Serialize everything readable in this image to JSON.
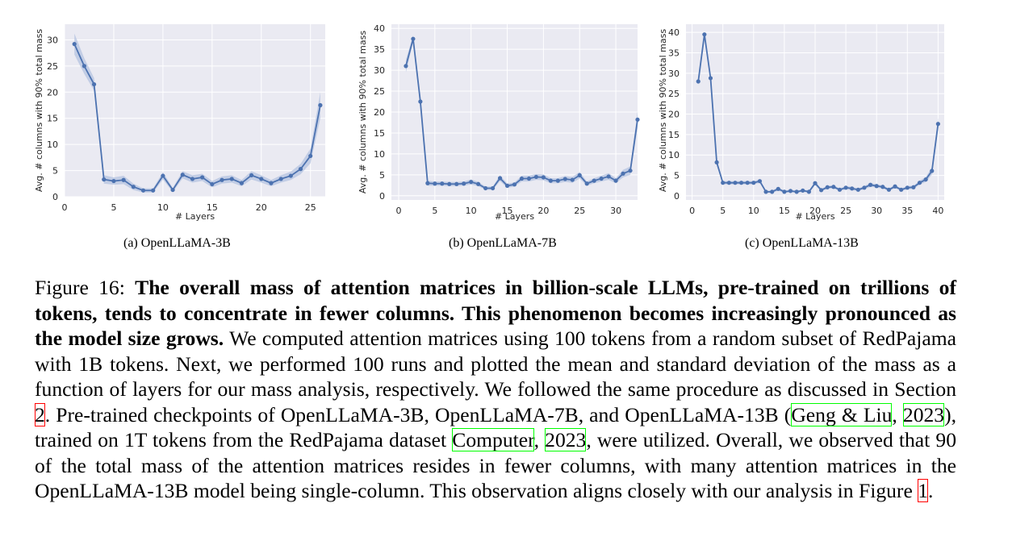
{
  "chart_data": [
    {
      "type": "line",
      "subcaption": "(a) OpenLLaMA-3B",
      "xlabel": "# Layers",
      "ylabel": "Avg. # columns with 90% total mass",
      "xlim": [
        0,
        26.5
      ],
      "ylim": [
        0,
        33
      ],
      "xticks": [
        0,
        5,
        10,
        15,
        20,
        25
      ],
      "yticks": [
        0,
        5,
        10,
        15,
        20,
        25,
        30
      ],
      "x": [
        1,
        2,
        3,
        4,
        5,
        6,
        7,
        8,
        9,
        10,
        11,
        12,
        13,
        14,
        15,
        16,
        17,
        18,
        19,
        20,
        21,
        22,
        23,
        24,
        25,
        26
      ],
      "values": [
        29.2,
        25.0,
        21.5,
        3.3,
        3.0,
        3.2,
        1.9,
        1.2,
        1.2,
        4.0,
        1.3,
        4.2,
        3.4,
        3.7,
        2.4,
        3.2,
        3.4,
        2.6,
        4.1,
        3.4,
        2.6,
        3.4,
        4.0,
        5.3,
        7.8,
        17.5
      ],
      "std": [
        2.0,
        1.5,
        1.2,
        0.8,
        0.7,
        0.8,
        0.6,
        0.4,
        0.4,
        0.7,
        0.4,
        0.7,
        0.7,
        0.7,
        0.6,
        0.7,
        0.7,
        0.6,
        0.8,
        0.7,
        0.6,
        0.7,
        0.8,
        1.0,
        1.4,
        2.5
      ],
      "grid": true
    },
    {
      "type": "line",
      "subcaption": "(b) OpenLLaMA-7B",
      "xlabel": "# Layers",
      "ylabel": "Avg. # columns with 90% total mass",
      "xlim": [
        -1,
        33
      ],
      "ylim": [
        -1,
        41
      ],
      "xticks": [
        0,
        5,
        10,
        15,
        20,
        25,
        30
      ],
      "yticks": [
        0,
        5,
        10,
        15,
        20,
        25,
        30,
        35,
        40
      ],
      "x": [
        1,
        2,
        3,
        4,
        5,
        6,
        7,
        8,
        9,
        10,
        11,
        12,
        13,
        14,
        15,
        16,
        17,
        18,
        19,
        20,
        21,
        22,
        23,
        24,
        25,
        26,
        27,
        28,
        29,
        30,
        31,
        32
      ],
      "values": [
        31.0,
        37.5,
        22.5,
        3.0,
        2.9,
        2.9,
        2.8,
        2.8,
        2.9,
        3.3,
        2.8,
        1.8,
        1.8,
        4.2,
        2.4,
        2.7,
        4.1,
        4.1,
        4.5,
        4.4,
        3.6,
        3.6,
        4.0,
        3.8,
        4.9,
        2.9,
        3.6,
        4.1,
        4.6,
        3.6,
        5.3,
        6.0
      ],
      "values_last": 18.2,
      "std": [
        1.5,
        0.8,
        1.0,
        0.6,
        0.5,
        0.5,
        0.5,
        0.5,
        0.5,
        0.6,
        0.5,
        0.4,
        0.4,
        0.7,
        0.5,
        0.5,
        0.7,
        0.7,
        0.7,
        0.7,
        0.6,
        0.6,
        0.7,
        0.7,
        0.8,
        0.5,
        0.6,
        0.7,
        0.8,
        0.6,
        0.9,
        1.0
      ],
      "grid": true
    },
    {
      "type": "line",
      "subcaption": "(c) OpenLLaMA-13B",
      "xlabel": "# Layers",
      "ylabel": "Avg. # columns with 90% total mass",
      "xlim": [
        -1,
        41
      ],
      "ylim": [
        -1,
        42
      ],
      "xticks": [
        0,
        5,
        10,
        15,
        20,
        25,
        30,
        35,
        40
      ],
      "yticks": [
        0,
        5,
        10,
        15,
        20,
        25,
        30,
        35,
        40
      ],
      "x": [
        1,
        2,
        3,
        4,
        5,
        6,
        7,
        8,
        9,
        10,
        11,
        12,
        13,
        14,
        15,
        16,
        17,
        18,
        19,
        20,
        21,
        22,
        23,
        24,
        25,
        26,
        27,
        28,
        29,
        30,
        31,
        32,
        33,
        34,
        35,
        36,
        37,
        38,
        39,
        40
      ],
      "values": [
        28.0,
        39.5,
        28.8,
        8.2,
        3.2,
        3.2,
        3.2,
        3.2,
        3.2,
        3.2,
        3.6,
        1.0,
        1.0,
        1.7,
        1.0,
        1.2,
        1.0,
        1.3,
        1.0,
        3.1,
        1.4,
        2.1,
        2.2,
        1.5,
        2.0,
        1.8,
        1.5,
        2.0,
        2.7,
        2.4,
        2.2,
        1.5,
        2.3,
        1.5,
        2.0,
        2.1,
        3.2,
        4.0,
        6.1,
        17.6
      ],
      "std": [
        1.0,
        0.6,
        0.8,
        0.8,
        0.4,
        0.4,
        0.4,
        0.4,
        0.4,
        0.4,
        0.4,
        0.3,
        0.3,
        0.4,
        0.3,
        0.3,
        0.3,
        0.3,
        0.3,
        0.5,
        0.3,
        0.4,
        0.4,
        0.3,
        0.4,
        0.4,
        0.3,
        0.4,
        0.5,
        0.4,
        0.4,
        0.3,
        0.4,
        0.3,
        0.4,
        0.4,
        0.5,
        0.6,
        0.9,
        1.5
      ],
      "grid": true
    }
  ],
  "caption": {
    "figure_label": "Figure 16:",
    "bold_text": "The overall mass of attention matrices in billion-scale LLMs, pre-trained on trillions of tokens, tends to concentrate in fewer columns.  This phenomenon becomes increasingly pronounced as the model size grows.",
    "text_1": "We computed attention matrices using 100 tokens from a random subset of RedPajama with 1B tokens. Next, we performed 100 runs and plotted the mean and standard deviation of the mass as a function of layers for our mass analysis, respectively. We followed the same procedure as discussed in Section ",
    "ref_section": "2",
    "text_2": ". Pre-trained checkpoints of OpenLLaMA-3B, OpenLLaMA-7B, and OpenLLaMA-13B (",
    "cite_geng": "Geng & Liu",
    "cite_sep_1": ", ",
    "cite_geng_year": "2023",
    "text_3": "), trained on 1T tokens from the RedPajama dataset ",
    "cite_computer": "Computer",
    "cite_sep_2": ", ",
    "cite_computer_year": "2023",
    "text_4": ", were utilized. Overall, we observed that 90 of the total mass of the attention matrices resides in fewer columns, with many attention matrices in the OpenLLaMA-13B model being single-column. This observation aligns closely with our analysis in Figure ",
    "ref_figure": "1",
    "text_5": "."
  },
  "colors": {
    "line": "#4c72b0",
    "band": "#b4c3e0",
    "plot_bg": "#eaeaf2",
    "grid": "#ffffff",
    "ref_red": "#ff0000",
    "ref_green": "#00ff00"
  }
}
